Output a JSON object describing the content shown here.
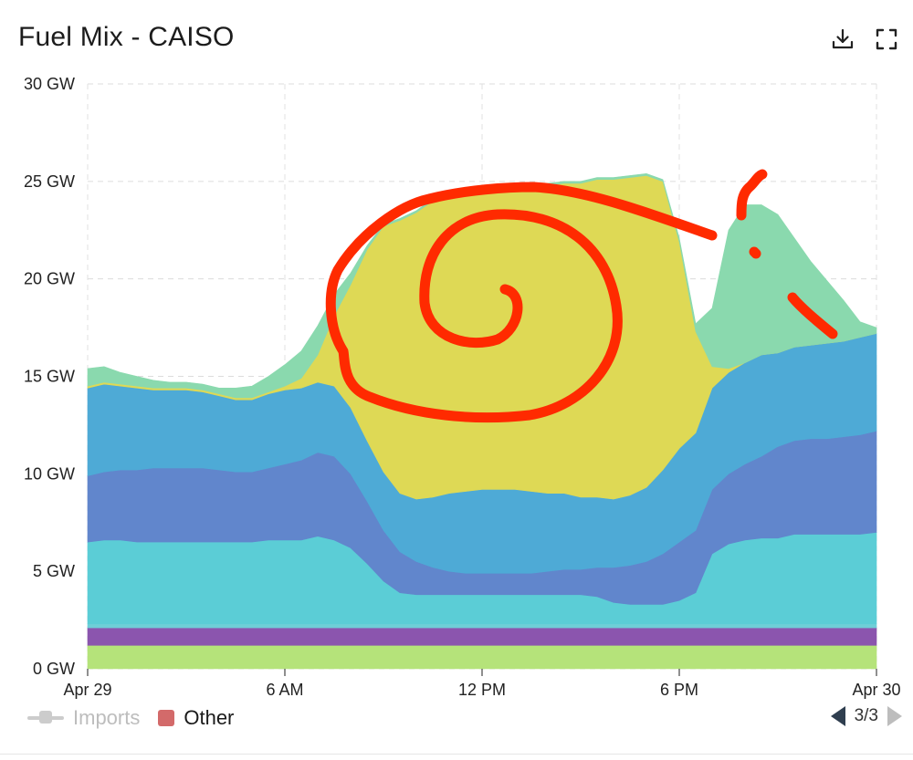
{
  "window": {
    "title": "Fuel Mix - CAISO",
    "icons": {
      "download": "download-icon",
      "fullscreen": "fullscreen-icon"
    }
  },
  "legend": {
    "items": [
      {
        "label": "Imports",
        "muted": true,
        "color": "#cccccc"
      },
      {
        "label": "Other",
        "muted": false,
        "color": "#d36a6a"
      }
    ]
  },
  "pager": {
    "label": "3/3",
    "prev_icon": "chevron-left-icon",
    "next_icon": "chevron-right-icon"
  },
  "annotation_color": "#ff2a00",
  "chart_data": {
    "type": "area",
    "stacked": true,
    "title": "Fuel Mix - CAISO",
    "x_labels": [
      "Apr 29",
      "6 AM",
      "12 PM",
      "6 PM",
      "Apr 30"
    ],
    "x": [
      0,
      0.5,
      1,
      1.5,
      2,
      2.5,
      3,
      3.5,
      4,
      4.5,
      5,
      5.5,
      6,
      6.5,
      7,
      7.5,
      8,
      8.5,
      9,
      9.5,
      10,
      10.5,
      11,
      11.5,
      12,
      12.5,
      13,
      13.5,
      14,
      14.5,
      15,
      15.5,
      16,
      16.5,
      17,
      17.5,
      18,
      18.5,
      19,
      19.5,
      20,
      20.5,
      21,
      21.5,
      22,
      22.5,
      23,
      23.5,
      24
    ],
    "x_unit": "hours since Apr 29 00:00",
    "ylim": [
      0,
      30
    ],
    "y_ticks": [
      "0 GW",
      "5 GW",
      "10 GW",
      "15 GW",
      "20 GW",
      "25 GW",
      "30 GW"
    ],
    "y_tick_values": [
      0,
      5,
      10,
      15,
      20,
      25,
      30
    ],
    "grid": true,
    "series": [
      {
        "color": "#b5e37a",
        "values": [
          1.2,
          1.2,
          1.2,
          1.2,
          1.2,
          1.2,
          1.2,
          1.2,
          1.2,
          1.2,
          1.2,
          1.2,
          1.2,
          1.2,
          1.2,
          1.2,
          1.2,
          1.2,
          1.2,
          1.2,
          1.2,
          1.2,
          1.2,
          1.2,
          1.2,
          1.2,
          1.2,
          1.2,
          1.2,
          1.2,
          1.2,
          1.2,
          1.2,
          1.2,
          1.2,
          1.2,
          1.2,
          1.2,
          1.2,
          1.2,
          1.2,
          1.2,
          1.2,
          1.2,
          1.2,
          1.2,
          1.2,
          1.2,
          1.2
        ]
      },
      {
        "color": "#8b55ae",
        "values": [
          0.9,
          0.9,
          0.9,
          0.9,
          0.9,
          0.9,
          0.9,
          0.9,
          0.9,
          0.9,
          0.9,
          0.9,
          0.9,
          0.9,
          0.9,
          0.9,
          0.9,
          0.9,
          0.9,
          0.9,
          0.9,
          0.9,
          0.9,
          0.9,
          0.9,
          0.9,
          0.9,
          0.9,
          0.9,
          0.9,
          0.9,
          0.9,
          0.9,
          0.9,
          0.9,
          0.9,
          0.9,
          0.9,
          0.9,
          0.9,
          0.9,
          0.9,
          0.9,
          0.9,
          0.9,
          0.9,
          0.9,
          0.9,
          0.9
        ]
      },
      {
        "color": "#6fcfd7",
        "values": [
          0.2,
          0.2,
          0.2,
          0.2,
          0.2,
          0.2,
          0.2,
          0.2,
          0.2,
          0.2,
          0.2,
          0.2,
          0.2,
          0.2,
          0.2,
          0.2,
          0.2,
          0.2,
          0.2,
          0.2,
          0.2,
          0.2,
          0.2,
          0.2,
          0.2,
          0.2,
          0.2,
          0.2,
          0.2,
          0.2,
          0.2,
          0.2,
          0.2,
          0.2,
          0.2,
          0.2,
          0.2,
          0.2,
          0.2,
          0.2,
          0.2,
          0.2,
          0.2,
          0.2,
          0.2,
          0.2,
          0.2,
          0.2,
          0.2
        ]
      },
      {
        "color": "#5bcdd6",
        "values": [
          4.2,
          4.3,
          4.3,
          4.2,
          4.2,
          4.2,
          4.2,
          4.2,
          4.2,
          4.2,
          4.2,
          4.3,
          4.3,
          4.3,
          4.5,
          4.3,
          3.9,
          3.1,
          2.2,
          1.6,
          1.5,
          1.5,
          1.5,
          1.5,
          1.5,
          1.5,
          1.5,
          1.5,
          1.5,
          1.5,
          1.5,
          1.4,
          1.1,
          1.0,
          1.0,
          1.0,
          1.2,
          1.6,
          3.6,
          4.1,
          4.3,
          4.4,
          4.4,
          4.6,
          4.6,
          4.6,
          4.6,
          4.6,
          4.7
        ]
      },
      {
        "color": "#6186cc",
        "values": [
          3.4,
          3.5,
          3.6,
          3.7,
          3.8,
          3.8,
          3.8,
          3.8,
          3.7,
          3.6,
          3.6,
          3.7,
          3.9,
          4.1,
          4.3,
          4.3,
          3.8,
          3.2,
          2.6,
          2.1,
          1.7,
          1.4,
          1.2,
          1.1,
          1.1,
          1.1,
          1.1,
          1.1,
          1.2,
          1.3,
          1.3,
          1.5,
          1.8,
          2.0,
          2.2,
          2.6,
          3.0,
          3.2,
          3.3,
          3.6,
          3.9,
          4.2,
          4.7,
          4.8,
          4.9,
          4.9,
          5.0,
          5.1,
          5.2
        ]
      },
      {
        "color": "#4eaad6",
        "values": [
          4.5,
          4.5,
          4.3,
          4.2,
          4.0,
          4.0,
          4.0,
          3.9,
          3.8,
          3.7,
          3.7,
          3.8,
          3.8,
          3.7,
          3.6,
          3.6,
          3.4,
          3.1,
          3.0,
          3.0,
          3.2,
          3.6,
          4.0,
          4.2,
          4.3,
          4.3,
          4.3,
          4.2,
          4.0,
          3.9,
          3.7,
          3.6,
          3.5,
          3.6,
          3.8,
          4.3,
          4.8,
          5.0,
          5.2,
          5.2,
          5.2,
          5.2,
          4.8,
          4.8,
          4.8,
          4.9,
          4.9,
          5.0,
          5.0
        ]
      },
      {
        "color": "#ded955",
        "values": [
          0.1,
          0.1,
          0.1,
          0.1,
          0.1,
          0.1,
          0.1,
          0.1,
          0.1,
          0.1,
          0.1,
          0.1,
          0.2,
          0.5,
          1.4,
          3.6,
          6.3,
          9.8,
          12.6,
          14.0,
          14.7,
          15.2,
          15.3,
          15.3,
          15.4,
          15.4,
          15.6,
          15.7,
          15.8,
          15.9,
          16.1,
          16.3,
          16.4,
          16.3,
          16.0,
          14.8,
          10.6,
          5.2,
          1.1,
          0.2,
          0,
          0,
          0,
          0,
          0,
          0,
          0,
          0,
          0
        ]
      },
      {
        "color": "#8ad9ae",
        "values": [
          0.9,
          0.8,
          0.6,
          0.5,
          0.4,
          0.3,
          0.3,
          0.3,
          0.3,
          0.5,
          0.6,
          0.8,
          1.1,
          1.4,
          1.5,
          1.1,
          0.6,
          0.2,
          0.1,
          0.1,
          0.1,
          0.1,
          0.1,
          0.1,
          0.1,
          0.1,
          0.1,
          0.1,
          0.1,
          0.1,
          0.1,
          0.1,
          0.1,
          0.1,
          0.1,
          0.1,
          0.2,
          0.4,
          3.0,
          7.1,
          8.1,
          7.7,
          7.1,
          5.6,
          4.3,
          3.2,
          2.1,
          0.8,
          0.3
        ]
      }
    ]
  }
}
